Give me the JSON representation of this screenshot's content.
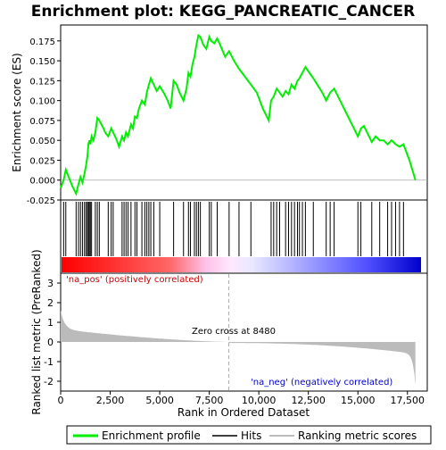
{
  "chart_data": {
    "type": "line",
    "title": "Enrichment plot: KEGG_PANCREATIC_CANCER",
    "xlabel": "Rank in Ordered Dataset",
    "ylabel_top": "Enrichment score (ES)",
    "ylabel_bottom": "Ranked list metric (PreRanked)",
    "xlim": [
      0,
      18500
    ],
    "ylim_top": [
      -0.025,
      0.195
    ],
    "ylim_bottom": [
      -2.5,
      3.5
    ],
    "x_ticks": [
      0,
      2500,
      5000,
      7500,
      10000,
      12500,
      15000,
      17500
    ],
    "x_tick_labels": [
      "0",
      "2,500",
      "5,000",
      "7,500",
      "10,000",
      "12,500",
      "15,000",
      "17,500"
    ],
    "y_ticks_top": [
      -0.025,
      0.0,
      0.025,
      0.05,
      0.075,
      0.1,
      0.125,
      0.15,
      0.175
    ],
    "y_tick_labels_top": [
      "-0.025",
      "0.000",
      "0.025",
      "0.050",
      "0.075",
      "0.100",
      "0.125",
      "0.150",
      "0.175"
    ],
    "y_ticks_bottom": [
      -2,
      -1,
      0,
      1,
      2,
      3
    ],
    "y_tick_labels_bottom": [
      "-2",
      "-1",
      "0",
      "1",
      "2",
      "3"
    ],
    "annotations": {
      "zero_cross": "Zero cross at 8480",
      "pos_label": "'na_pos' (positively correlated)",
      "neg_label": "'na_neg' (negatively correlated)"
    },
    "zero_cross_rank": 8480,
    "n_genes": 17900,
    "series": [
      {
        "name": "Enrichment profile",
        "color": "#00ee00",
        "x": [
          0,
          150,
          260,
          420,
          600,
          780,
          900,
          1000,
          1100,
          1200,
          1280,
          1350,
          1400,
          1450,
          1500,
          1560,
          1650,
          1750,
          1850,
          1950,
          2100,
          2250,
          2400,
          2550,
          2650,
          2800,
          2950,
          3100,
          3200,
          3300,
          3400,
          3550,
          3650,
          3750,
          3850,
          3950,
          4100,
          4250,
          4350,
          4450,
          4550,
          4700,
          4850,
          5000,
          5200,
          5400,
          5550,
          5700,
          5850,
          6000,
          6200,
          6350,
          6450,
          6550,
          6650,
          6750,
          6850,
          6950,
          7050,
          7200,
          7350,
          7500,
          7600,
          7750,
          7900,
          8050,
          8300,
          8500,
          8750,
          9000,
          9300,
          9600,
          9900,
          10200,
          10500,
          10620,
          10750,
          10900,
          11050,
          11200,
          11350,
          11500,
          11650,
          11800,
          11950,
          12050,
          12200,
          12350,
          12550,
          12750,
          12950,
          13200,
          13400,
          13600,
          13800,
          14100,
          14400,
          14700,
          15000,
          15150,
          15300,
          15500,
          15700,
          15900,
          16100,
          16300,
          16500,
          16700,
          16900,
          17100,
          17300,
          17600,
          17900
        ],
        "y": [
          -0.01,
          0.0,
          0.013,
          0.003,
          -0.008,
          -0.017,
          -0.005,
          0.004,
          -0.003,
          0.008,
          0.018,
          0.03,
          0.045,
          0.05,
          0.045,
          0.055,
          0.05,
          0.06,
          0.078,
          0.075,
          0.068,
          0.06,
          0.055,
          0.065,
          0.06,
          0.052,
          0.042,
          0.055,
          0.05,
          0.06,
          0.055,
          0.07,
          0.065,
          0.08,
          0.078,
          0.09,
          0.1,
          0.095,
          0.11,
          0.12,
          0.128,
          0.12,
          0.112,
          0.118,
          0.11,
          0.1,
          0.09,
          0.125,
          0.12,
          0.11,
          0.1,
          0.115,
          0.135,
          0.13,
          0.145,
          0.155,
          0.17,
          0.182,
          0.18,
          0.17,
          0.165,
          0.18,
          0.175,
          0.172,
          0.178,
          0.17,
          0.155,
          0.162,
          0.15,
          0.14,
          0.13,
          0.12,
          0.11,
          0.09,
          0.075,
          0.1,
          0.105,
          0.115,
          0.11,
          0.105,
          0.112,
          0.108,
          0.12,
          0.115,
          0.125,
          0.128,
          0.135,
          0.142,
          0.135,
          0.128,
          0.12,
          0.11,
          0.1,
          0.11,
          0.115,
          0.1,
          0.085,
          0.07,
          0.055,
          0.065,
          0.068,
          0.058,
          0.048,
          0.055,
          0.05,
          0.05,
          0.045,
          0.05,
          0.045,
          0.042,
          0.045,
          0.025,
          0.0
        ]
      }
    ],
    "hits": [
      150,
      260,
      780,
      900,
      1000,
      1100,
      1200,
      1280,
      1350,
      1400,
      1450,
      1500,
      1560,
      1750,
      1850,
      1950,
      2400,
      2550,
      2650,
      3100,
      3200,
      3300,
      3400,
      3550,
      3750,
      3850,
      4100,
      4250,
      4350,
      4450,
      4550,
      4700,
      5000,
      5700,
      6200,
      6450,
      6550,
      6750,
      6850,
      6950,
      7050,
      7500,
      7600,
      7900,
      8500,
      9000,
      9600,
      10620,
      10750,
      10900,
      11050,
      11350,
      11500,
      11650,
      11800,
      11950,
      12050,
      12200,
      12350,
      12750,
      13400,
      13600,
      13800,
      15000,
      15150,
      15700,
      16100,
      16500,
      16700,
      16900,
      17100,
      17300
    ]
  },
  "legend": {
    "items": [
      {
        "label": "Enrichment profile",
        "color": "#00ee00"
      },
      {
        "label": "Hits",
        "color": "#000000"
      },
      {
        "label": "Ranking metric scores",
        "color": "#bbbbbb"
      }
    ]
  }
}
